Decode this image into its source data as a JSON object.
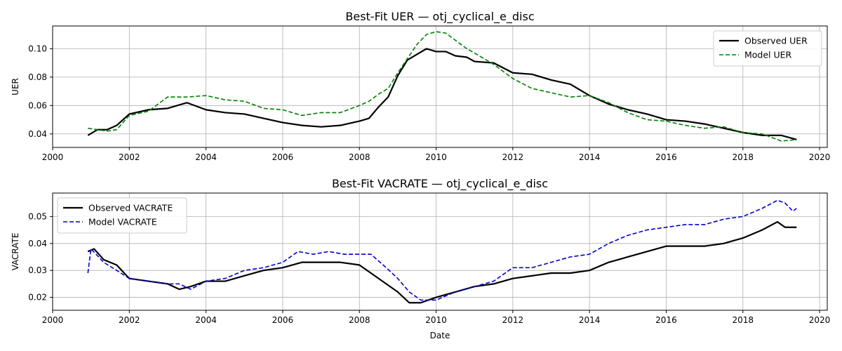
{
  "chart_data": [
    {
      "type": "line",
      "title": "Best-Fit UER — otj_cyclical_e_disc",
      "xlabel": "",
      "ylabel": "UER",
      "xlim": [
        2000,
        2020.2
      ],
      "ylim": [
        0.0305,
        0.116
      ],
      "xticks": [
        2000,
        2002,
        2004,
        2006,
        2008,
        2010,
        2012,
        2014,
        2016,
        2018,
        2020
      ],
      "yticks": [
        0.04,
        0.06,
        0.08,
        0.1
      ],
      "ytick_labels": [
        "0.04",
        "0.06",
        "0.08",
        "0.10"
      ],
      "grid": true,
      "legend_position": "upper right",
      "series": [
        {
          "name": "Observed UER",
          "color": "#000000",
          "style": "solid",
          "points": [
            [
              2000.92,
              0.039
            ],
            [
              2001.17,
              0.043
            ],
            [
              2001.42,
              0.043
            ],
            [
              2001.67,
              0.046
            ],
            [
              2002.0,
              0.054
            ],
            [
              2002.5,
              0.057
            ],
            [
              2003.0,
              0.058
            ],
            [
              2003.5,
              0.062
            ],
            [
              2004.0,
              0.057
            ],
            [
              2004.5,
              0.055
            ],
            [
              2005.0,
              0.054
            ],
            [
              2005.5,
              0.051
            ],
            [
              2006.0,
              0.048
            ],
            [
              2006.5,
              0.046
            ],
            [
              2007.0,
              0.045
            ],
            [
              2007.5,
              0.046
            ],
            [
              2008.0,
              0.049
            ],
            [
              2008.25,
              0.051
            ],
            [
              2008.5,
              0.059
            ],
            [
              2008.75,
              0.066
            ],
            [
              2009.0,
              0.081
            ],
            [
              2009.25,
              0.092
            ],
            [
              2009.5,
              0.096
            ],
            [
              2009.75,
              0.1
            ],
            [
              2010.0,
              0.098
            ],
            [
              2010.25,
              0.098
            ],
            [
              2010.5,
              0.095
            ],
            [
              2010.8,
              0.094
            ],
            [
              2011.0,
              0.091
            ],
            [
              2011.5,
              0.09
            ],
            [
              2012.0,
              0.083
            ],
            [
              2012.5,
              0.082
            ],
            [
              2013.0,
              0.078
            ],
            [
              2013.5,
              0.075
            ],
            [
              2014.0,
              0.067
            ],
            [
              2014.5,
              0.061
            ],
            [
              2015.0,
              0.057
            ],
            [
              2015.5,
              0.054
            ],
            [
              2016.0,
              0.05
            ],
            [
              2016.5,
              0.049
            ],
            [
              2017.0,
              0.047
            ],
            [
              2017.5,
              0.044
            ],
            [
              2018.0,
              0.041
            ],
            [
              2018.5,
              0.039
            ],
            [
              2019.0,
              0.039
            ],
            [
              2019.4,
              0.036
            ]
          ]
        },
        {
          "name": "Model UER",
          "color": "#008000",
          "style": "dashed",
          "points": [
            [
              2000.92,
              0.044
            ],
            [
              2001.17,
              0.043
            ],
            [
              2001.42,
              0.042
            ],
            [
              2001.67,
              0.043
            ],
            [
              2002.0,
              0.053
            ],
            [
              2002.5,
              0.056
            ],
            [
              2003.0,
              0.066
            ],
            [
              2003.5,
              0.066
            ],
            [
              2004.0,
              0.067
            ],
            [
              2004.5,
              0.064
            ],
            [
              2005.0,
              0.063
            ],
            [
              2005.5,
              0.058
            ],
            [
              2006.0,
              0.057
            ],
            [
              2006.5,
              0.053
            ],
            [
              2007.0,
              0.055
            ],
            [
              2007.5,
              0.055
            ],
            [
              2008.0,
              0.06
            ],
            [
              2008.25,
              0.063
            ],
            [
              2008.5,
              0.068
            ],
            [
              2008.75,
              0.072
            ],
            [
              2009.0,
              0.083
            ],
            [
              2009.25,
              0.093
            ],
            [
              2009.5,
              0.103
            ],
            [
              2009.75,
              0.11
            ],
            [
              2010.0,
              0.112
            ],
            [
              2010.25,
              0.111
            ],
            [
              2010.5,
              0.106
            ],
            [
              2010.8,
              0.1
            ],
            [
              2011.0,
              0.097
            ],
            [
              2011.5,
              0.089
            ],
            [
              2012.0,
              0.079
            ],
            [
              2012.5,
              0.072
            ],
            [
              2013.0,
              0.069
            ],
            [
              2013.5,
              0.066
            ],
            [
              2014.0,
              0.067
            ],
            [
              2014.5,
              0.062
            ],
            [
              2015.0,
              0.055
            ],
            [
              2015.5,
              0.05
            ],
            [
              2016.0,
              0.049
            ],
            [
              2016.5,
              0.046
            ],
            [
              2017.0,
              0.044
            ],
            [
              2017.5,
              0.045
            ],
            [
              2018.0,
              0.041
            ],
            [
              2018.5,
              0.04
            ],
            [
              2019.0,
              0.035
            ],
            [
              2019.4,
              0.036
            ]
          ]
        }
      ]
    },
    {
      "type": "line",
      "title": "Best-Fit VACRATE — otj_cyclical_e_disc",
      "xlabel": "Date",
      "ylabel": "VACRATE",
      "xlim": [
        2000,
        2020.2
      ],
      "ylim": [
        0.0152,
        0.0587
      ],
      "xticks": [
        2000,
        2002,
        2004,
        2006,
        2008,
        2010,
        2012,
        2014,
        2016,
        2018,
        2020
      ],
      "yticks": [
        0.02,
        0.03,
        0.04,
        0.05
      ],
      "ytick_labels": [
        "0.02",
        "0.03",
        "0.04",
        "0.05"
      ],
      "grid": true,
      "legend_position": "upper left",
      "series": [
        {
          "name": "Observed VACRATE",
          "color": "#000000",
          "style": "solid",
          "points": [
            [
              2000.92,
              0.037
            ],
            [
              2001.08,
              0.038
            ],
            [
              2001.33,
              0.034
            ],
            [
              2001.67,
              0.032
            ],
            [
              2002.0,
              0.027
            ],
            [
              2002.5,
              0.026
            ],
            [
              2003.0,
              0.025
            ],
            [
              2003.3,
              0.023
            ],
            [
              2003.6,
              0.024
            ],
            [
              2004.0,
              0.026
            ],
            [
              2004.5,
              0.026
            ],
            [
              2005.0,
              0.028
            ],
            [
              2005.5,
              0.03
            ],
            [
              2006.0,
              0.031
            ],
            [
              2006.5,
              0.033
            ],
            [
              2007.0,
              0.033
            ],
            [
              2007.5,
              0.033
            ],
            [
              2008.0,
              0.032
            ],
            [
              2008.3,
              0.029
            ],
            [
              2008.7,
              0.025
            ],
            [
              2009.0,
              0.022
            ],
            [
              2009.3,
              0.018
            ],
            [
              2009.6,
              0.018
            ],
            [
              2010.0,
              0.02
            ],
            [
              2010.5,
              0.022
            ],
            [
              2011.0,
              0.024
            ],
            [
              2011.5,
              0.025
            ],
            [
              2012.0,
              0.027
            ],
            [
              2012.5,
              0.028
            ],
            [
              2013.0,
              0.029
            ],
            [
              2013.5,
              0.029
            ],
            [
              2014.0,
              0.03
            ],
            [
              2014.5,
              0.033
            ],
            [
              2015.0,
              0.035
            ],
            [
              2015.5,
              0.037
            ],
            [
              2016.0,
              0.039
            ],
            [
              2016.5,
              0.039
            ],
            [
              2017.0,
              0.039
            ],
            [
              2017.5,
              0.04
            ],
            [
              2018.0,
              0.042
            ],
            [
              2018.5,
              0.045
            ],
            [
              2018.9,
              0.048
            ],
            [
              2019.1,
              0.046
            ],
            [
              2019.4,
              0.046
            ]
          ]
        },
        {
          "name": "Model VACRATE",
          "color": "#0000cc",
          "style": "dashed",
          "points": [
            [
              2000.92,
              0.029
            ],
            [
              2001.0,
              0.038
            ],
            [
              2001.33,
              0.033
            ],
            [
              2001.67,
              0.03
            ],
            [
              2002.0,
              0.027
            ],
            [
              2002.5,
              0.026
            ],
            [
              2003.0,
              0.025
            ],
            [
              2003.3,
              0.025
            ],
            [
              2003.6,
              0.023
            ],
            [
              2004.0,
              0.026
            ],
            [
              2004.5,
              0.027
            ],
            [
              2005.0,
              0.03
            ],
            [
              2005.5,
              0.031
            ],
            [
              2006.0,
              0.033
            ],
            [
              2006.4,
              0.037
            ],
            [
              2006.8,
              0.036
            ],
            [
              2007.2,
              0.037
            ],
            [
              2007.6,
              0.036
            ],
            [
              2008.0,
              0.036
            ],
            [
              2008.3,
              0.036
            ],
            [
              2008.7,
              0.031
            ],
            [
              2009.0,
              0.027
            ],
            [
              2009.3,
              0.022
            ],
            [
              2009.6,
              0.019
            ],
            [
              2010.0,
              0.019
            ],
            [
              2010.5,
              0.022
            ],
            [
              2011.0,
              0.024
            ],
            [
              2011.5,
              0.026
            ],
            [
              2012.0,
              0.031
            ],
            [
              2012.5,
              0.031
            ],
            [
              2013.0,
              0.033
            ],
            [
              2013.5,
              0.035
            ],
            [
              2014.0,
              0.036
            ],
            [
              2014.5,
              0.04
            ],
            [
              2015.0,
              0.043
            ],
            [
              2015.5,
              0.045
            ],
            [
              2016.0,
              0.046
            ],
            [
              2016.5,
              0.047
            ],
            [
              2017.0,
              0.047
            ],
            [
              2017.5,
              0.049
            ],
            [
              2018.0,
              0.05
            ],
            [
              2018.5,
              0.053
            ],
            [
              2018.9,
              0.056
            ],
            [
              2019.1,
              0.055
            ],
            [
              2019.3,
              0.052
            ],
            [
              2019.4,
              0.053
            ]
          ]
        }
      ]
    }
  ]
}
